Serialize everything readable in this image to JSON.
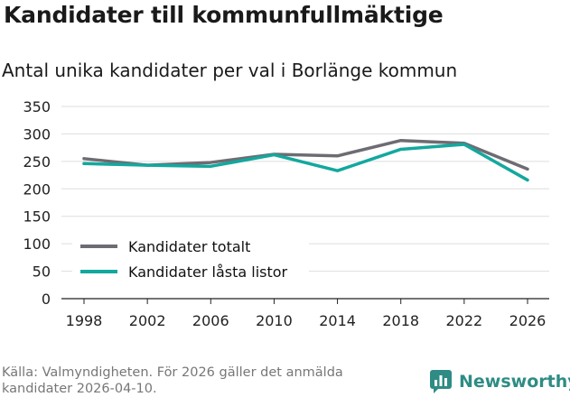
{
  "header": {
    "title": "Kandidater till kommunfullmäktige",
    "subtitle": "Antal unika kandidater per val i Borlänge kommun"
  },
  "chart_data": {
    "type": "line",
    "title": "Kandidater till kommunfullmäktige",
    "subtitle": "Antal unika kandidater per val i Borlänge kommun",
    "xlabel": "",
    "ylabel": "",
    "x": [
      "1998",
      "2002",
      "2006",
      "2010",
      "2014",
      "2018",
      "2022",
      "2026"
    ],
    "ylim": [
      0,
      350
    ],
    "yticks": [
      0,
      50,
      100,
      150,
      200,
      250,
      300,
      350
    ],
    "grid": true,
    "legend_position": "bottom-left",
    "series": [
      {
        "name": "Kandidater totalt",
        "color": "#6e6c72",
        "values": [
          255,
          243,
          248,
          263,
          260,
          288,
          283,
          236
        ]
      },
      {
        "name": "Kandidater låsta listor",
        "color": "#13a89e",
        "values": [
          246,
          243,
          241,
          262,
          233,
          272,
          281,
          216
        ]
      }
    ]
  },
  "footer": {
    "source": "Källa: Valmyndigheten. För 2026 gäller det anmälda kandidater 2026-04-10.",
    "brand": "Newsworthy",
    "brand_icon": "bar-chart-speech-icon",
    "brand_color": "#2e8c84"
  }
}
